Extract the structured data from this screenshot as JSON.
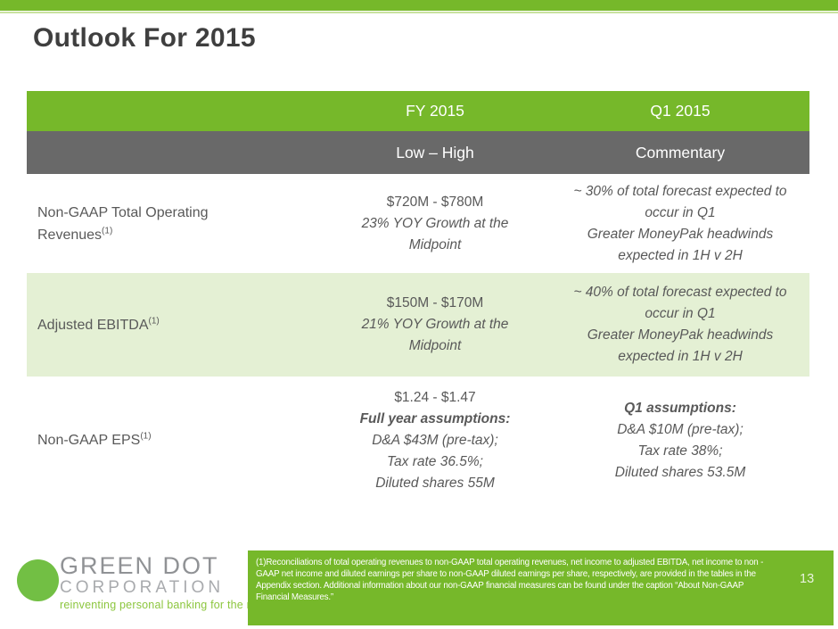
{
  "slide": {
    "title": "Outlook For 2015",
    "page_number": "13"
  },
  "colors": {
    "brand_green": "#76B82A",
    "row_highlight_green": "#E4F0D4",
    "subheader_gray": "#696969",
    "body_text_gray": "#595959"
  },
  "table": {
    "headers": {
      "fy": "FY 2015",
      "q1": "Q1 2015",
      "fy_sub": "Low – High",
      "q1_sub": "Commentary"
    },
    "rows": [
      {
        "label": "Non-GAAP Total Operating Revenues",
        "footnote_ref": "(1)",
        "highlighted": false,
        "fy_lines": [
          {
            "text": "$720M - $780M",
            "style": "plain"
          },
          {
            "text": "23% YOY Growth at the Midpoint",
            "style": "italic"
          }
        ],
        "q1_lines": [
          {
            "text": "~ 30% of total forecast expected to occur in Q1",
            "style": "italic"
          },
          {
            "text": "Greater MoneyPak headwinds expected in 1H v 2H",
            "style": "italic"
          }
        ]
      },
      {
        "label": "Adjusted EBITDA",
        "footnote_ref": "(1)",
        "highlighted": true,
        "fy_lines": [
          {
            "text": "$150M - $170M",
            "style": "plain"
          },
          {
            "text": "21% YOY Growth at the Midpoint",
            "style": "italic"
          }
        ],
        "q1_lines": [
          {
            "text": "~ 40% of total forecast expected to occur in Q1",
            "style": "italic"
          },
          {
            "text": "Greater MoneyPak headwinds expected in 1H v 2H",
            "style": "italic"
          }
        ]
      },
      {
        "label": "Non-GAAP EPS",
        "footnote_ref": "(1)",
        "highlighted": false,
        "fy_lines": [
          {
            "text": "$1.24 - $1.47",
            "style": "plain"
          },
          {
            "text": "Full year assumptions:",
            "style": "bold-italic"
          },
          {
            "text": "D&A $43M (pre-tax);",
            "style": "italic"
          },
          {
            "text": "Tax rate 36.5%;",
            "style": "italic"
          },
          {
            "text": "Diluted shares 55M",
            "style": "italic"
          }
        ],
        "q1_lines": [
          {
            "text": "Q1 assumptions:",
            "style": "bold-italic"
          },
          {
            "text": "D&A $10M (pre-tax);",
            "style": "italic"
          },
          {
            "text": "Tax rate 38%;",
            "style": "italic"
          },
          {
            "text": "Diluted shares 53.5M",
            "style": "italic"
          }
        ]
      }
    ]
  },
  "footer": {
    "logo": {
      "primary": "GREEN DOT",
      "secondary": "CORPORATION",
      "tagline": "reinventing personal banking for the masses"
    },
    "footnote_lines": [
      "(1)Reconciliations of total operating revenues to non-GAAP total operating revenues, net income to adjusted EBITDA, net income to non -",
      "GAAP net income and diluted earnings per share to non-GAAP diluted earnings per share, respectively, are provided in the tables in the",
      "Appendix section. Additional information about our non-GAAP financial measures can be found under the caption “About Non-GAAP",
      "Financial Measures.”"
    ]
  }
}
